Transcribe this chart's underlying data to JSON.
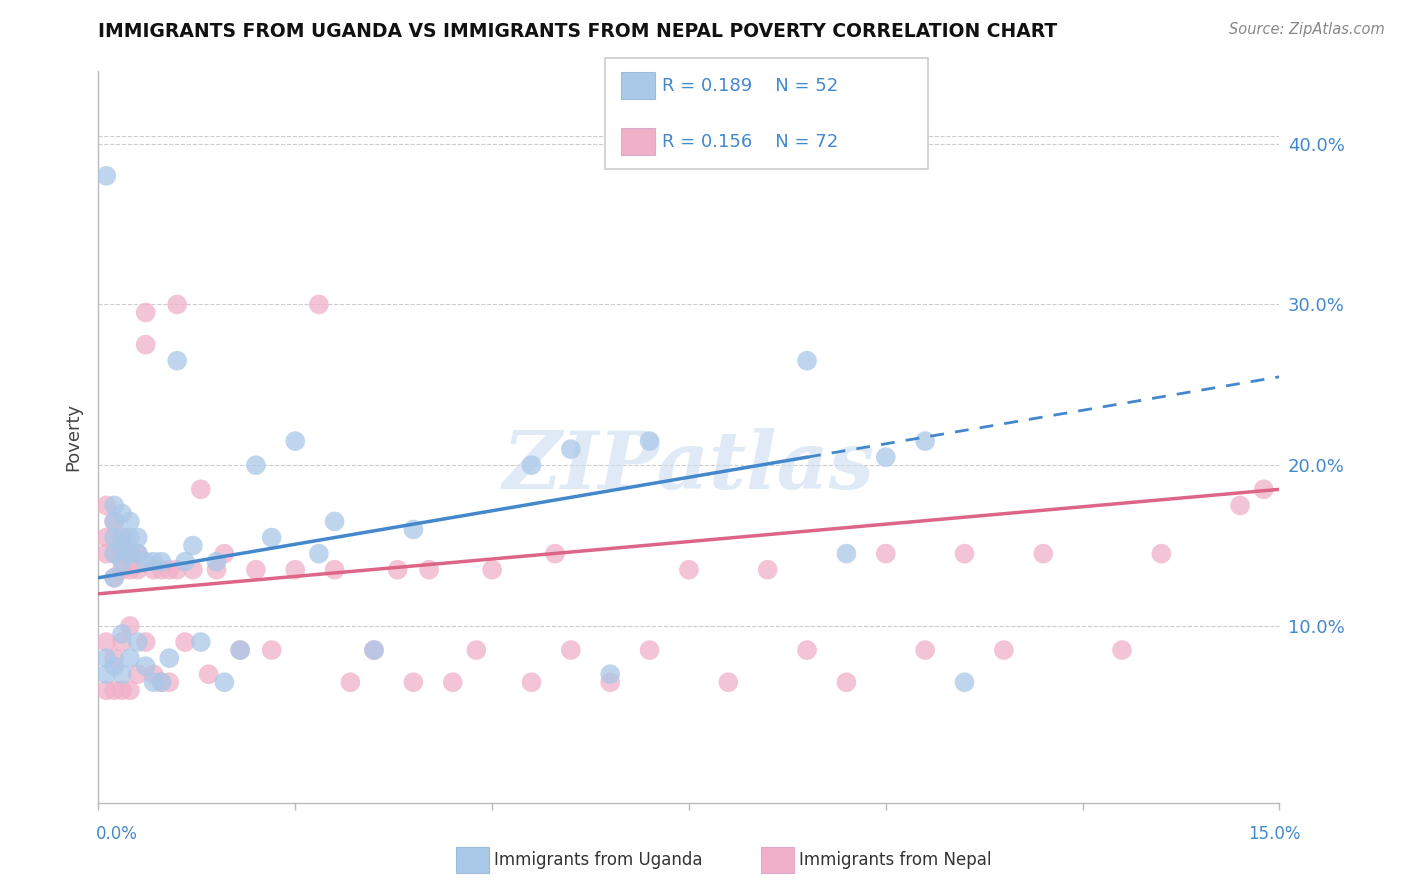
{
  "title": "IMMIGRANTS FROM UGANDA VS IMMIGRANTS FROM NEPAL POVERTY CORRELATION CHART",
  "source": "Source: ZipAtlas.com",
  "ylabel": "Poverty",
  "xlim": [
    0.0,
    0.15
  ],
  "ylim": [
    -0.01,
    0.445
  ],
  "uganda_R": 0.189,
  "uganda_N": 52,
  "nepal_R": 0.156,
  "nepal_N": 72,
  "uganda_color": "#aac8e8",
  "nepal_color": "#f0b0c8",
  "uganda_line_color": "#4488cc",
  "nepal_line_color": "#dd6688",
  "watermark_color": "#ccddf0",
  "ytick_labels": [
    "10.0%",
    "20.0%",
    "30.0%",
    "40.0%"
  ],
  "ytick_values": [
    0.1,
    0.2,
    0.3,
    0.4
  ],
  "xtick_values": [
    0.0,
    0.025,
    0.05,
    0.075,
    0.1,
    0.125,
    0.15
  ],
  "uganda_x": [
    0.001,
    0.001,
    0.001,
    0.002,
    0.002,
    0.002,
    0.002,
    0.002,
    0.002,
    0.003,
    0.003,
    0.003,
    0.003,
    0.003,
    0.003,
    0.004,
    0.004,
    0.004,
    0.004,
    0.005,
    0.005,
    0.005,
    0.006,
    0.006,
    0.007,
    0.007,
    0.008,
    0.008,
    0.009,
    0.01,
    0.011,
    0.012,
    0.013,
    0.015,
    0.016,
    0.018,
    0.02,
    0.022,
    0.025,
    0.028,
    0.03,
    0.035,
    0.04,
    0.055,
    0.06,
    0.065,
    0.07,
    0.09,
    0.095,
    0.1,
    0.105,
    0.11
  ],
  "uganda_y": [
    0.38,
    0.08,
    0.07,
    0.175,
    0.165,
    0.155,
    0.145,
    0.13,
    0.075,
    0.17,
    0.155,
    0.15,
    0.14,
    0.095,
    0.07,
    0.165,
    0.155,
    0.145,
    0.08,
    0.155,
    0.145,
    0.09,
    0.14,
    0.075,
    0.14,
    0.065,
    0.14,
    0.065,
    0.08,
    0.265,
    0.14,
    0.15,
    0.09,
    0.14,
    0.065,
    0.085,
    0.2,
    0.155,
    0.215,
    0.145,
    0.165,
    0.085,
    0.16,
    0.2,
    0.21,
    0.07,
    0.215,
    0.265,
    0.145,
    0.205,
    0.215,
    0.065
  ],
  "nepal_x": [
    0.001,
    0.001,
    0.001,
    0.001,
    0.001,
    0.002,
    0.002,
    0.002,
    0.002,
    0.002,
    0.003,
    0.003,
    0.003,
    0.003,
    0.003,
    0.004,
    0.004,
    0.004,
    0.004,
    0.005,
    0.005,
    0.005,
    0.006,
    0.006,
    0.006,
    0.007,
    0.007,
    0.008,
    0.008,
    0.009,
    0.009,
    0.01,
    0.01,
    0.011,
    0.012,
    0.013,
    0.014,
    0.015,
    0.016,
    0.018,
    0.02,
    0.022,
    0.025,
    0.028,
    0.03,
    0.032,
    0.035,
    0.038,
    0.04,
    0.042,
    0.045,
    0.048,
    0.05,
    0.055,
    0.058,
    0.06,
    0.065,
    0.07,
    0.075,
    0.08,
    0.085,
    0.09,
    0.095,
    0.1,
    0.105,
    0.11,
    0.115,
    0.12,
    0.13,
    0.135,
    0.145,
    0.148
  ],
  "nepal_y": [
    0.175,
    0.155,
    0.145,
    0.09,
    0.06,
    0.165,
    0.145,
    0.13,
    0.08,
    0.06,
    0.155,
    0.145,
    0.135,
    0.09,
    0.06,
    0.145,
    0.135,
    0.1,
    0.06,
    0.145,
    0.135,
    0.07,
    0.295,
    0.275,
    0.09,
    0.135,
    0.07,
    0.135,
    0.065,
    0.135,
    0.065,
    0.3,
    0.135,
    0.09,
    0.135,
    0.185,
    0.07,
    0.135,
    0.145,
    0.085,
    0.135,
    0.085,
    0.135,
    0.3,
    0.135,
    0.065,
    0.085,
    0.135,
    0.065,
    0.135,
    0.065,
    0.085,
    0.135,
    0.065,
    0.145,
    0.085,
    0.065,
    0.085,
    0.135,
    0.065,
    0.135,
    0.085,
    0.065,
    0.145,
    0.085,
    0.145,
    0.085,
    0.145,
    0.085,
    0.145,
    0.175,
    0.185
  ],
  "uganda_trend_x0": 0.0,
  "uganda_trend_x1": 0.15,
  "uganda_trend_y0": 0.13,
  "uganda_trend_y1": 0.255,
  "nepal_trend_x0": 0.0,
  "nepal_trend_x1": 0.15,
  "nepal_trend_y0": 0.12,
  "nepal_trend_y1": 0.185
}
